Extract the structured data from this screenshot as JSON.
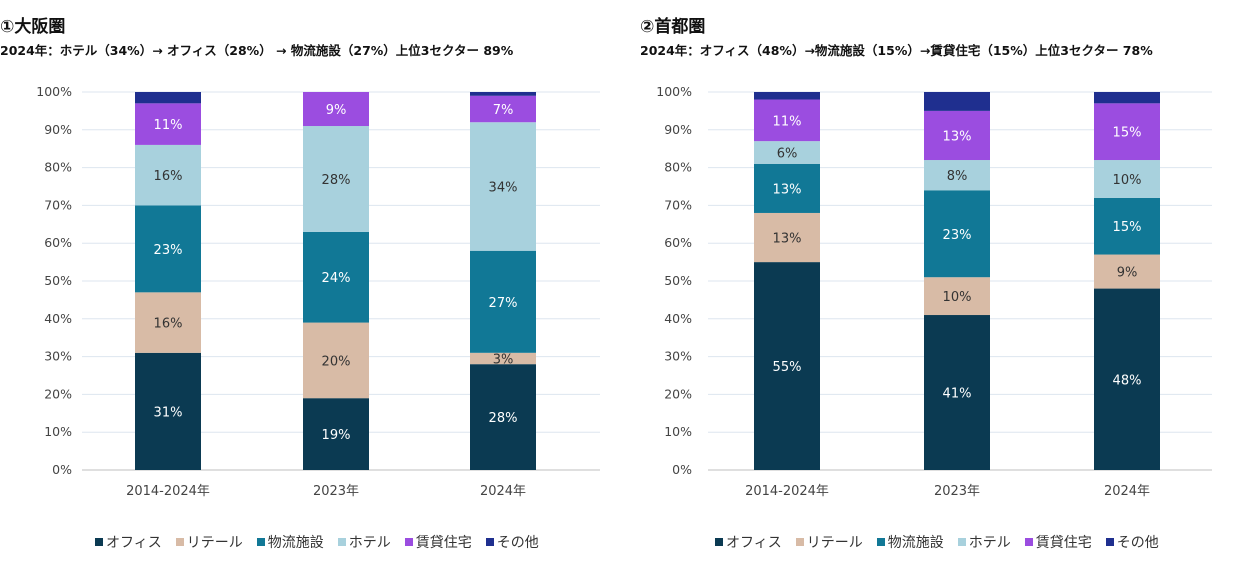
{
  "legend": [
    "オフィス",
    "リテール",
    "物流施設",
    "ホテル",
    "賃貸住宅",
    "その他"
  ],
  "colors": {
    "オフィス": "#0b3a52",
    "リテール": "#d8bba6",
    "物流施設": "#117896",
    "ホテル": "#a8d1dd",
    "賃貸住宅": "#9b4de0",
    "その他": "#1f2f8f"
  },
  "chart_data": [
    {
      "type": "bar",
      "stacked": true,
      "title": "①大阪圏",
      "subtitle": "2024年：ホテル（34%）→ オフィス（28%） → 物流施設（27%）上位3セクター 89%",
      "categories": [
        "2014-2024年",
        "2023年",
        "2024年"
      ],
      "yticks": [
        "0%",
        "10%",
        "20%",
        "30%",
        "40%",
        "50%",
        "60%",
        "70%",
        "80%",
        "90%",
        "100%"
      ],
      "ylim": [
        0,
        100
      ],
      "series": [
        {
          "name": "オフィス",
          "values": [
            31,
            19,
            28
          ],
          "labels": [
            "31%",
            "19%",
            "28%"
          ]
        },
        {
          "name": "リテール",
          "values": [
            16,
            20,
            3
          ],
          "labels": [
            "16%",
            "20%",
            "3%"
          ]
        },
        {
          "name": "物流施設",
          "values": [
            23,
            24,
            27
          ],
          "labels": [
            "23%",
            "24%",
            "27%"
          ]
        },
        {
          "name": "ホテル",
          "values": [
            16,
            28,
            34
          ],
          "labels": [
            "16%",
            "28%",
            "34%"
          ]
        },
        {
          "name": "賃貸住宅",
          "values": [
            11,
            9,
            7
          ],
          "labels": [
            "11%",
            "9%",
            "7%"
          ]
        },
        {
          "name": "その他",
          "values": [
            3,
            0,
            1
          ],
          "labels": [
            "",
            "",
            ""
          ]
        }
      ]
    },
    {
      "type": "bar",
      "stacked": true,
      "title": "②首都圏",
      "subtitle": "2024年：オフィス（48%）→物流施設（15%）→賃貸住宅（15%）上位3セクター 78%",
      "categories": [
        "2014-2024年",
        "2023年",
        "2024年"
      ],
      "yticks": [
        "0%",
        "10%",
        "20%",
        "30%",
        "40%",
        "50%",
        "60%",
        "70%",
        "80%",
        "90%",
        "100%"
      ],
      "ylim": [
        0,
        100
      ],
      "series": [
        {
          "name": "オフィス",
          "values": [
            55,
            41,
            48
          ],
          "labels": [
            "55%",
            "41%",
            "48%"
          ]
        },
        {
          "name": "リテール",
          "values": [
            13,
            10,
            9
          ],
          "labels": [
            "13%",
            "10%",
            "9%"
          ]
        },
        {
          "name": "物流施設",
          "values": [
            13,
            23,
            15
          ],
          "labels": [
            "13%",
            "23%",
            "15%"
          ]
        },
        {
          "name": "ホテル",
          "values": [
            6,
            8,
            10
          ],
          "labels": [
            "6%",
            "8%",
            "10%"
          ]
        },
        {
          "name": "賃貸住宅",
          "values": [
            11,
            13,
            15
          ],
          "labels": [
            "11%",
            "13%",
            "15%"
          ]
        },
        {
          "name": "その他",
          "values": [
            2,
            5,
            3
          ],
          "labels": [
            "",
            "",
            ""
          ]
        }
      ]
    }
  ]
}
